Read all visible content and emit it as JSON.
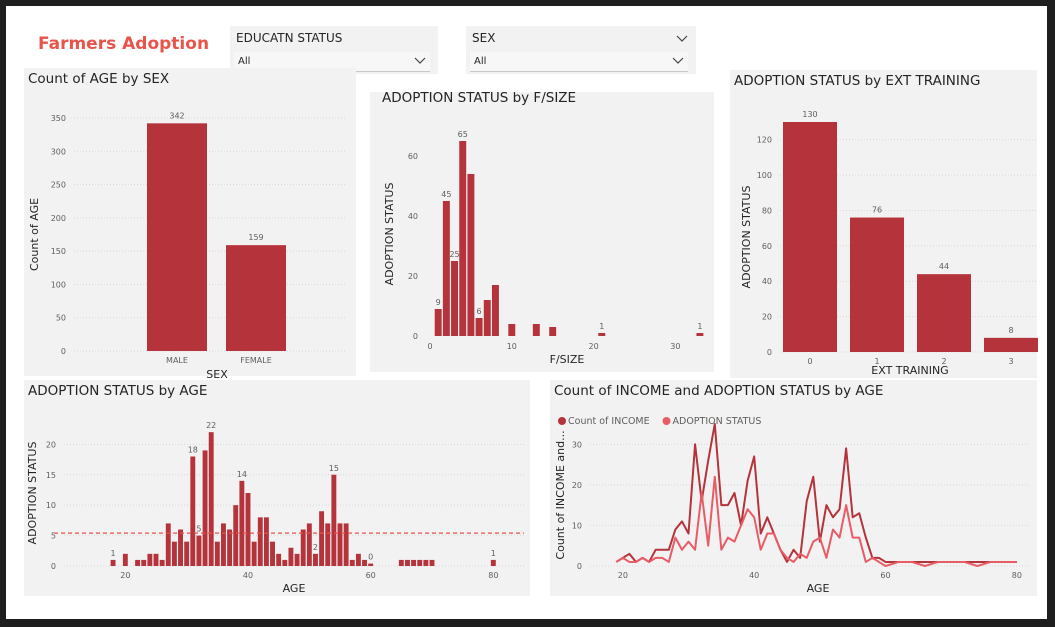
{
  "report_title": "Farmers Adoption",
  "slicers": [
    {
      "label": "EDUCATN STATUS",
      "value": "All"
    },
    {
      "label": "SEX",
      "value": "All"
    }
  ],
  "colors": {
    "bar": "#b5333b",
    "line1": "#b5333b",
    "line2": "#e85c66",
    "panel": "#f2f2f2"
  },
  "chart_data": [
    {
      "id": "age_by_sex",
      "type": "bar",
      "title": "Count of AGE by SEX",
      "xlabel": "SEX",
      "ylabel": "Count of AGE",
      "categories": [
        "MALE",
        "FEMALE"
      ],
      "values": [
        342,
        159
      ],
      "value_labels": [
        "342",
        "159"
      ],
      "ylim": [
        0,
        350
      ],
      "yticks": [
        0,
        50,
        100,
        150,
        200,
        250,
        300,
        350
      ]
    },
    {
      "id": "adoption_by_fsize",
      "type": "bar",
      "title": "ADOPTION STATUS by F/SIZE",
      "xlabel": "F/SIZE",
      "ylabel": "ADOPTION STATUS",
      "x": [
        1,
        2,
        3,
        4,
        5,
        6,
        7,
        8,
        10,
        13,
        15,
        21,
        33
      ],
      "values": [
        9,
        45,
        25,
        65,
        54,
        6,
        12,
        17,
        4,
        4,
        3,
        1,
        1
      ],
      "labeled": {
        "1": "9",
        "2": "45",
        "3": "25",
        "4": "65",
        "6": "6",
        "21": "1",
        "33": "1"
      },
      "xlim": [
        0,
        33.5
      ],
      "xticks": [
        0,
        10,
        20,
        30
      ],
      "ylim": [
        0,
        68
      ],
      "yticks": [
        0,
        20,
        40,
        60
      ]
    },
    {
      "id": "adoption_by_ext",
      "type": "bar",
      "title": "ADOPTION STATUS by EXT TRAINING",
      "xlabel": "EXT TRAINING",
      "ylabel": "ADOPTION STATUS",
      "categories": [
        "0",
        "1",
        "2",
        "3"
      ],
      "values": [
        130,
        76,
        44,
        8
      ],
      "value_labels": [
        "130",
        "76",
        "44",
        "8"
      ],
      "ylim": [
        0,
        130
      ],
      "yticks": [
        0,
        20,
        40,
        60,
        80,
        100,
        120
      ]
    },
    {
      "id": "adoption_by_age",
      "type": "bar",
      "title": "ADOPTION STATUS by AGE",
      "xlabel": "AGE",
      "ylabel": "ADOPTION STATUS",
      "x": [
        18,
        20,
        22,
        23,
        24,
        25,
        26,
        27,
        28,
        29,
        30,
        31,
        32,
        33,
        34,
        35,
        36,
        37,
        38,
        39,
        40,
        41,
        42,
        43,
        44,
        45,
        46,
        47,
        48,
        49,
        50,
        51,
        52,
        53,
        54,
        55,
        56,
        57,
        58,
        59,
        60,
        65,
        66,
        67,
        68,
        69,
        70,
        80
      ],
      "values": [
        1,
        2,
        1,
        1,
        2,
        2,
        1,
        7,
        4,
        6,
        4,
        18,
        5,
        19,
        22,
        4,
        7,
        6,
        10,
        14,
        12,
        4,
        8,
        8,
        4,
        2,
        1,
        3,
        2,
        6,
        7,
        2,
        9,
        7,
        15,
        7,
        7,
        1,
        2,
        1,
        0.4,
        1,
        1,
        1,
        1,
        1,
        1,
        1
      ],
      "labeled": {
        "18": "1",
        "31": "18",
        "32": "5",
        "34": "22",
        "39": "14",
        "51": "2",
        "54": "15",
        "60": "0",
        "80": "1"
      },
      "average_line": 5.4,
      "xlim": [
        10,
        85
      ],
      "xticks": [
        20,
        40,
        60,
        80
      ],
      "ylim": [
        0,
        24
      ],
      "yticks": [
        0,
        5,
        10,
        15,
        20
      ]
    },
    {
      "id": "income_adoption_by_age",
      "type": "line",
      "title": "Count of INCOME and ADOPTION STATUS by AGE",
      "xlabel": "AGE",
      "ylabel": "Count of INCOME and...",
      "x": [
        19,
        20,
        21,
        22,
        23,
        24,
        25,
        26,
        27,
        28,
        29,
        30,
        31,
        32,
        33,
        34,
        35,
        36,
        37,
        38,
        39,
        40,
        41,
        42,
        43,
        44,
        45,
        46,
        47,
        48,
        49,
        50,
        51,
        52,
        53,
        54,
        55,
        56,
        57,
        58,
        59,
        60,
        62,
        64,
        66,
        68,
        70,
        72,
        74,
        76,
        78,
        80
      ],
      "series": [
        {
          "name": "Count of INCOME",
          "values": [
            1,
            2,
            3,
            1,
            2,
            1,
            4,
            4,
            4,
            9,
            11,
            8,
            30,
            16,
            26,
            35,
            15,
            15,
            18,
            10,
            21,
            27,
            8,
            12,
            8,
            4,
            1,
            4,
            2,
            16,
            22,
            6,
            15,
            12,
            14,
            29,
            12,
            13,
            7,
            2,
            2,
            1,
            1,
            1,
            1,
            1,
            1,
            1,
            1,
            1,
            1,
            1
          ]
        },
        {
          "name": "ADOPTION STATUS",
          "values": [
            1,
            2,
            1,
            1,
            2,
            1,
            2,
            2,
            1,
            7,
            4,
            6,
            4,
            18,
            5,
            22,
            4,
            7,
            6,
            10,
            14,
            12,
            4,
            8,
            8,
            4,
            2,
            1,
            3,
            2,
            6,
            7,
            2,
            9,
            7,
            15,
            7,
            7,
            1,
            2,
            1,
            0,
            1,
            1,
            0,
            1,
            1,
            1,
            0,
            1,
            1,
            1
          ]
        }
      ],
      "xlim": [
        15,
        82
      ],
      "xticks": [
        20,
        40,
        60,
        80
      ],
      "ylim": [
        0,
        35
      ],
      "yticks": [
        0,
        10,
        20,
        30
      ]
    }
  ]
}
